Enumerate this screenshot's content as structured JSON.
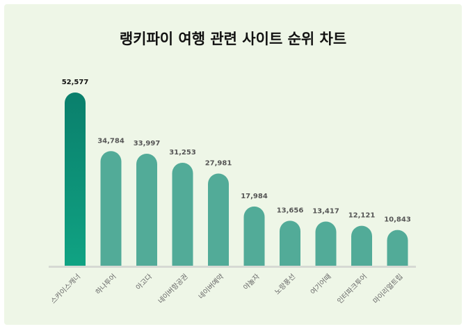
{
  "chart_data": {
    "type": "bar",
    "title": "랭키파이 여행 관련 사이트 순위 차트",
    "categories": [
      "스카이스캐너",
      "하나투어",
      "아고다",
      "네이버항공권",
      "네이버예약",
      "야놀자",
      "노랑풍선",
      "여기어때",
      "인터파크투어",
      "마이리얼트립"
    ],
    "values": [
      52577,
      34784,
      33997,
      31253,
      27981,
      17984,
      13656,
      13417,
      12121,
      10843
    ],
    "value_labels": [
      "52,577",
      "34,784",
      "33,997",
      "31,253",
      "27,981",
      "17,984",
      "13,656",
      "13,417",
      "12,121",
      "10,843"
    ],
    "xlabel": "",
    "ylabel": "",
    "ylim": [
      0,
      52577
    ],
    "grid": false,
    "colors": {
      "top": "#0a8a73",
      "other": "#52ab98",
      "axis": "#d6d9d3"
    }
  }
}
